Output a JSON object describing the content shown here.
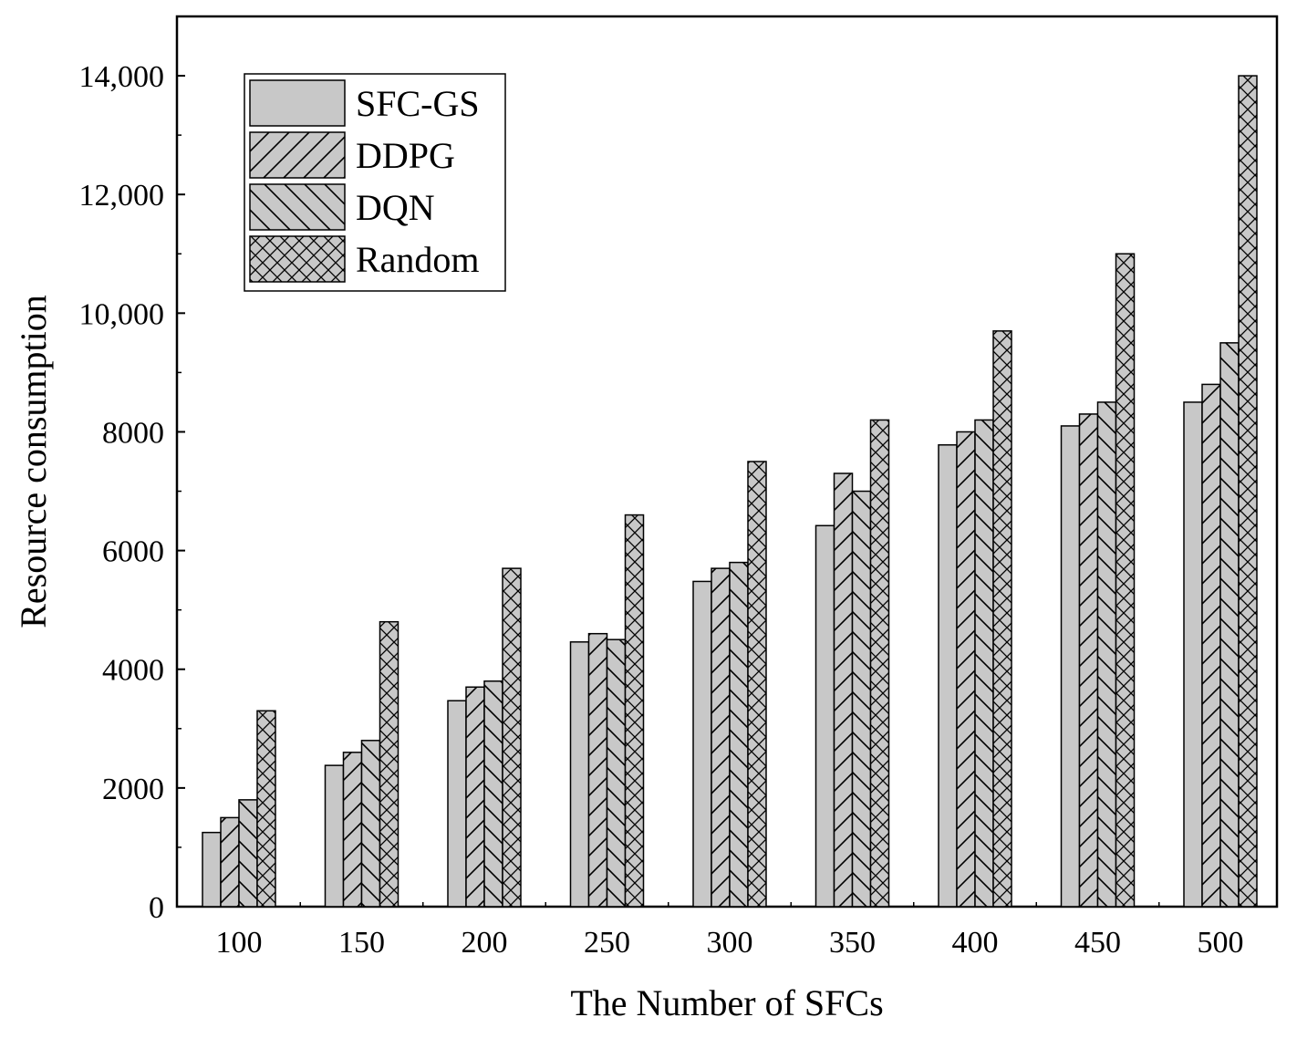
{
  "chart_data": {
    "type": "bar",
    "title": "",
    "xlabel": "The Number of SFCs",
    "ylabel": "Resource consumption",
    "categories": [
      "100",
      "150",
      "200",
      "250",
      "300",
      "350",
      "400",
      "450",
      "500"
    ],
    "ylim": [
      0,
      15000
    ],
    "yticks": [
      0,
      2000,
      4000,
      6000,
      8000,
      10000,
      12000,
      14000
    ],
    "ytick_labels": [
      "0",
      "2000",
      "4000",
      "6000",
      "8000",
      "10,000",
      "12,000",
      "14,000"
    ],
    "legend_position": "top-left",
    "series": [
      {
        "name": "SFC-GS",
        "pattern": "solid",
        "values": [
          1250,
          2380,
          3470,
          4460,
          5480,
          6420,
          7780,
          8100,
          8500
        ]
      },
      {
        "name": "DDPG",
        "pattern": "forward-hatch",
        "values": [
          1500,
          2600,
          3700,
          4600,
          5700,
          7300,
          8000,
          8300,
          8800
        ]
      },
      {
        "name": "DQN",
        "pattern": "back-hatch",
        "values": [
          1800,
          2800,
          3800,
          4500,
          5800,
          7000,
          8200,
          8500,
          9500
        ]
      },
      {
        "name": "Random",
        "pattern": "cross-hatch",
        "values": [
          3300,
          4800,
          5700,
          6600,
          7500,
          8200,
          9700,
          11000,
          14000
        ]
      }
    ],
    "colors": {
      "bar_fill": "#c8c8c8",
      "stroke": "#000000",
      "background": "#ffffff"
    }
  }
}
